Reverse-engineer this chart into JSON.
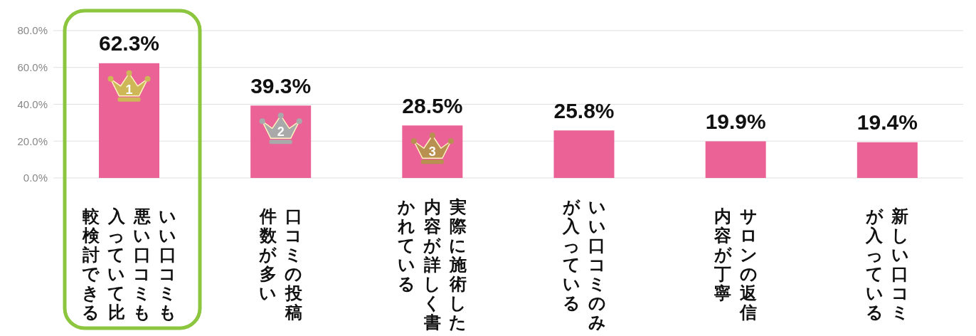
{
  "chart_data": {
    "type": "bar",
    "categories": [
      "いい口コミも悪い口コミも入っていて比較検討できる",
      "口コミの投稿件数が多い",
      "実際に施術した内容が詳しく書かれている",
      "いい口コミのみが入っている",
      "サロンの返信内容が丁寧",
      "新しい口コミが入っている"
    ],
    "values": [
      62.3,
      39.3,
      28.5,
      25.8,
      19.9,
      19.4
    ],
    "value_labels": [
      "62.3%",
      "39.3%",
      "28.5%",
      "25.8%",
      "19.9%",
      "19.4%"
    ],
    "color": "#ea6296",
    "ylim": [
      0,
      80
    ],
    "yticks": [
      {
        "value": 0,
        "label": "0.0%"
      },
      {
        "value": 20,
        "label": "20.0%"
      },
      {
        "value": 40,
        "label": "40.0%"
      },
      {
        "value": 60,
        "label": "60.0%"
      },
      {
        "value": 80,
        "label": "80.0%"
      }
    ],
    "grid": "y",
    "annotations": [
      "1",
      "2",
      "3"
    ]
  }
}
